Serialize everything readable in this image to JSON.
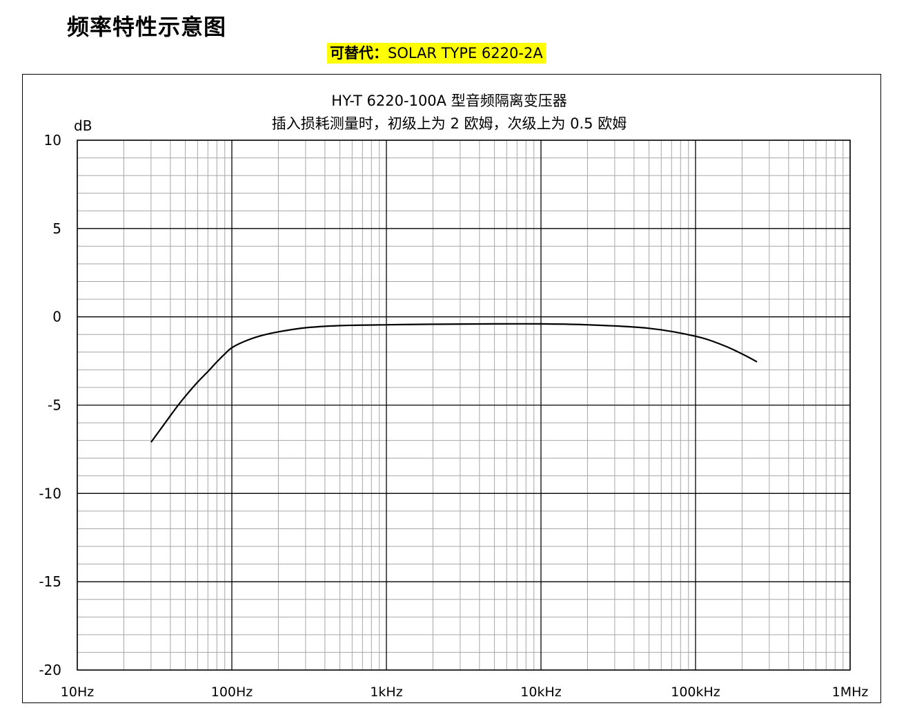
{
  "heading": "频率特性示意图",
  "substitute": {
    "label": "可替代：",
    "value": "SOLAR TYPE 6220-2A",
    "highlight_color": "#ffff00"
  },
  "chart_data": {
    "type": "line",
    "title": "HY-T 6220-100A 型音频隔离变压器",
    "subtitle": "插入损耗测量时，初级上为 2 欧姆，次级上为 0.5 欧姆",
    "ylabel": "dB",
    "xlabel": "",
    "x_scale": "log",
    "xlim": [
      10,
      1000000
    ],
    "ylim": [
      -20,
      10
    ],
    "x_ticks": [
      10,
      100,
      1000,
      10000,
      100000,
      1000000
    ],
    "x_tick_labels": [
      "10Hz",
      "100Hz",
      "1kHz",
      "10kHz",
      "100kHz",
      "1MHz"
    ],
    "y_ticks": [
      10,
      5,
      0,
      -5,
      -10,
      -15,
      -20
    ],
    "y_tick_labels": [
      "10",
      "5",
      "0",
      "-5",
      "-10",
      "-15",
      "-20"
    ],
    "grid": true,
    "legend": "none",
    "series": [
      {
        "color": "#000000",
        "x": [
          30,
          35,
          40,
          45,
          50,
          60,
          70,
          80,
          90,
          100,
          120,
          150,
          200,
          300,
          500,
          1000,
          2000,
          5000,
          10000,
          20000,
          50000,
          100000,
          150000,
          200000,
          250000
        ],
        "y": [
          -7.1,
          -6.3,
          -5.6,
          -5.0,
          -4.5,
          -3.7,
          -3.1,
          -2.55,
          -2.1,
          -1.75,
          -1.4,
          -1.1,
          -0.85,
          -0.62,
          -0.5,
          -0.45,
          -0.42,
          -0.4,
          -0.4,
          -0.45,
          -0.65,
          -1.1,
          -1.6,
          -2.1,
          -2.55
        ]
      }
    ]
  }
}
